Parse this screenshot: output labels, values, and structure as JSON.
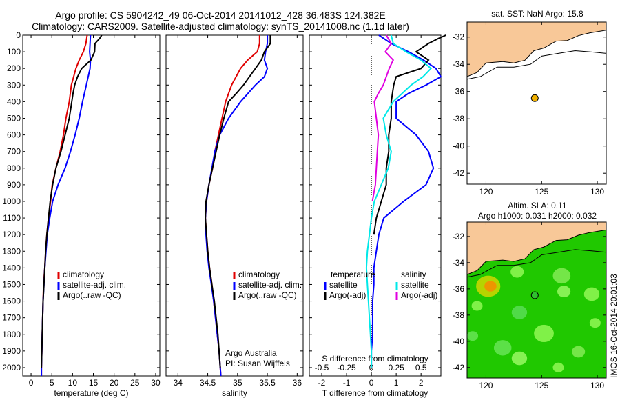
{
  "title_line1": "Argo profile: CS 5904242_49 06-Oct-2014 20141012_428 36.483S 124.382E",
  "title_line2": "Climatology: CARS2009. Satellite-adjusted climatology: synTS_20141008.nc (1.1d later)",
  "colors": {
    "climatology": "#e00000",
    "satellite": "#0000ff",
    "argo": "#000000",
    "satellite_s": "#00e8e8",
    "argo_s": "#e000e0",
    "land": "#f8c898",
    "ocean": "#ffffff"
  },
  "chart_data": [
    {
      "type": "line",
      "id": "temperature",
      "xlabel": "temperature (deg C)",
      "ylabel": "",
      "xlim": [
        -2,
        31
      ],
      "ylim": [
        2050,
        0
      ],
      "xticks": [
        0,
        5,
        10,
        15,
        20,
        25,
        30
      ],
      "yticks": [
        0,
        100,
        200,
        300,
        400,
        500,
        600,
        700,
        800,
        900,
        1000,
        1100,
        1200,
        1300,
        1400,
        1500,
        1600,
        1700,
        1800,
        1900,
        2000
      ],
      "legend": [
        "climatology",
        "satellite-adj. clim.",
        "Argo(..raw -QC)"
      ],
      "series": [
        {
          "name": "climatology",
          "color": "#e00000",
          "depth": [
            0,
            50,
            100,
            150,
            200,
            300,
            400,
            500,
            600,
            700,
            800,
            900,
            1000,
            1100,
            1200,
            1300,
            1400,
            1500,
            1600,
            1700,
            1800,
            1900,
            2000,
            2050
          ],
          "values": [
            13.5,
            13.2,
            12.6,
            11.6,
            10.8,
            9.7,
            9.2,
            8.4,
            7.8,
            7.0,
            6.0,
            5.1,
            4.7,
            4.2,
            3.8,
            3.5,
            3.3,
            3.0,
            2.9,
            2.8,
            2.7,
            2.6,
            2.5,
            2.5
          ]
        },
        {
          "name": "satellite-adj. clim.",
          "color": "#0000ff",
          "depth": [
            0,
            50,
            100,
            150,
            200,
            300,
            400,
            500,
            600,
            700,
            800,
            900,
            1000,
            1100,
            1200,
            1300,
            1400,
            1500,
            1600,
            1700,
            1800,
            1900,
            2000,
            2050
          ],
          "values": [
            14.3,
            14.2,
            14.1,
            14.3,
            14.2,
            13.3,
            12.4,
            11.6,
            10.6,
            9.5,
            8.2,
            6.5,
            5.2,
            4.5,
            3.9,
            3.6,
            3.3,
            3.1,
            2.9,
            2.8,
            2.7,
            2.6,
            2.5,
            2.5
          ]
        },
        {
          "name": "Argo(..raw -QC)",
          "color": "#000000",
          "depth": [
            0,
            20,
            50,
            100,
            150,
            200,
            250,
            300,
            350,
            400,
            500,
            600,
            700,
            800,
            900,
            1000,
            1100,
            1200,
            1300,
            1400,
            1500,
            1600,
            1700,
            1800,
            1900,
            2000
          ],
          "values": [
            17.0,
            16.5,
            15.4,
            15.3,
            14.4,
            12.2,
            11.2,
            10.5,
            10.1,
            9.8,
            9.2,
            8.2,
            7.2,
            6.0,
            5.2,
            4.6,
            4.2,
            3.8,
            3.5,
            3.3,
            3.1,
            2.9,
            2.8,
            2.7,
            2.6,
            2.5
          ]
        }
      ]
    },
    {
      "type": "line",
      "id": "salinity",
      "xlabel": "salinity",
      "xlim": [
        33.8,
        36.1
      ],
      "ylim": [
        2050,
        0
      ],
      "xticks": [
        34,
        34.5,
        35,
        35.5,
        36
      ],
      "legend": [
        "climatology",
        "satellite-adj. clim.",
        "Argo(..raw -QC)"
      ],
      "annotation": [
        "Argo Australia",
        "PI: Susan Wijffels"
      ],
      "series": [
        {
          "name": "climatology",
          "color": "#e00000",
          "depth": [
            0,
            50,
            100,
            150,
            200,
            300,
            400,
            500,
            600,
            700,
            800,
            900,
            1000,
            1100,
            1200,
            1300,
            1400,
            1500,
            1600,
            1700,
            1800,
            1900,
            2000,
            2050
          ],
          "values": [
            35.37,
            35.37,
            35.33,
            35.17,
            35.05,
            34.9,
            34.8,
            34.74,
            34.68,
            34.62,
            34.58,
            34.52,
            34.48,
            34.46,
            34.48,
            34.5,
            34.53,
            34.57,
            34.6,
            34.63,
            34.66,
            34.69,
            34.71,
            34.72
          ]
        },
        {
          "name": "satellite-adj. clim.",
          "color": "#0000ff",
          "depth": [
            0,
            50,
            100,
            150,
            200,
            250,
            300,
            400,
            500,
            600,
            700,
            800,
            900,
            1000,
            1100,
            1200,
            1300,
            1400,
            1500,
            1600,
            1700,
            1800,
            1900,
            2000,
            2050
          ],
          "values": [
            35.5,
            35.5,
            35.47,
            35.45,
            35.5,
            35.45,
            35.3,
            35.05,
            34.85,
            34.7,
            34.62,
            34.57,
            34.52,
            34.48,
            34.46,
            34.47,
            34.49,
            34.52,
            34.56,
            34.6,
            34.63,
            34.66,
            34.69,
            34.71,
            34.72
          ]
        },
        {
          "name": "Argo(..raw -QC)",
          "color": "#000000",
          "depth": [
            0,
            50,
            100,
            150,
            200,
            250,
            300,
            350,
            400,
            500,
            600,
            700,
            800,
            900,
            1000,
            1100,
            1200,
            1300,
            1400,
            1500,
            1600,
            1700,
            1800,
            1900,
            2000
          ],
          "values": [
            35.55,
            35.55,
            35.45,
            35.4,
            35.3,
            35.2,
            35.1,
            34.98,
            34.85,
            34.77,
            34.7,
            34.64,
            34.58,
            34.52,
            34.47,
            34.46,
            34.48,
            34.5,
            34.53,
            34.57,
            34.61,
            34.64,
            34.67,
            34.69,
            34.71
          ]
        }
      ]
    },
    {
      "type": "line",
      "id": "difference",
      "xlabel": "T difference from climatology",
      "xlabel_top": "S difference from climatology",
      "xlim": [
        -2.5,
        2.8
      ],
      "ylim": [
        2050,
        0
      ],
      "xticks": [
        -2,
        -1,
        0,
        1,
        2
      ],
      "xticks_s_values": [
        -0.5,
        -0.25,
        0,
        0.25,
        0.5
      ],
      "xticks_s_labels": [
        "-0.5",
        "-0.25",
        "0",
        "0.25",
        "0.5"
      ],
      "legend": {
        "temperature_header": "temperature",
        "salinity_header": "salinity",
        "t_satellite": "satellite",
        "t_argo": "Argo(-adj)",
        "s_satellite": "satellite",
        "s_argo": "Argo(-adj)"
      },
      "series": [
        {
          "name": "satellite (T)",
          "color": "#0000ff",
          "depth": [
            0,
            50,
            100,
            150,
            200,
            250,
            300,
            350,
            400,
            500,
            600,
            700,
            800,
            900,
            1000,
            1100,
            1200,
            1300,
            1400,
            1500,
            1600,
            1700,
            1800,
            1900,
            2000
          ],
          "values": [
            0.3,
            0.8,
            1.5,
            2.1,
            2.6,
            2.8,
            2.2,
            1.5,
            1.0,
            1.0,
            1.8,
            2.3,
            2.5,
            2.2,
            1.3,
            0.5,
            0.3,
            0.2,
            0.1,
            0.1,
            0.05,
            0.05,
            0.05,
            0.0,
            0.0
          ]
        },
        {
          "name": "Argo(-adj) (T)",
          "color": "#000000",
          "depth": [
            0,
            20,
            50,
            100,
            150,
            200,
            250,
            300,
            400,
            500,
            600,
            700,
            800,
            900,
            1000,
            1100,
            1200
          ],
          "values": [
            3.0,
            2.7,
            2.3,
            1.8,
            2.3,
            2.0,
            1.0,
            0.9,
            0.8,
            0.8,
            0.7,
            0.7,
            0.6,
            0.6,
            0.4,
            0.2,
            0.1
          ]
        },
        {
          "name": "satellite (S)",
          "color": "#00e8e8",
          "depth": [
            0,
            50,
            100,
            150,
            200,
            250,
            300,
            400,
            500,
            600,
            700,
            800,
            900,
            1000,
            1100,
            1200,
            1300,
            1400,
            1500,
            1600,
            1700,
            1800,
            1900,
            2000
          ],
          "values": [
            0.2,
            0.22,
            0.35,
            0.5,
            0.6,
            0.52,
            0.4,
            0.22,
            0.12,
            0.15,
            0.2,
            0.17,
            0.1,
            0.03,
            0.0,
            -0.02,
            -0.04,
            -0.05,
            -0.04,
            -0.03,
            -0.02,
            -0.01,
            0.0,
            0.0
          ]
        },
        {
          "name": "Argo(-adj) (S)",
          "color": "#e000e0",
          "depth": [
            0,
            50,
            100,
            150,
            200,
            250,
            300,
            350,
            400,
            500,
            600,
            700,
            800,
            900,
            1000
          ],
          "values": [
            0.15,
            0.2,
            0.14,
            0.22,
            0.18,
            0.15,
            0.12,
            0.07,
            0.03,
            0.05,
            0.07,
            0.06,
            0.05,
            0.04,
            0.01
          ]
        }
      ]
    }
  ],
  "map_top": {
    "title": "sat. SST: NaN Argo: 15.8",
    "xticks": [
      120,
      125,
      130
    ],
    "yticks": [
      -32,
      -34,
      -36,
      -38,
      -40,
      -42
    ],
    "xlim": [
      118.3,
      130.8
    ],
    "ylim": [
      -42.8,
      -30.9
    ],
    "marker": {
      "lon": 124.382,
      "lat": -36.483
    }
  },
  "map_bottom": {
    "title1": "Altim. SLA: 0.11",
    "title2": "Argo h1000: 0.031 h2000: 0.032",
    "xticks": [
      120,
      125,
      130
    ],
    "yticks": [
      -32,
      -34,
      -36,
      -38,
      -40,
      -42
    ],
    "xlim": [
      118.3,
      130.8
    ],
    "ylim": [
      -42.8,
      -30.9
    ],
    "marker": {
      "lon": 124.382,
      "lat": -36.483
    }
  },
  "watermark": "IMOS 16-Oct-2014 20:01:03"
}
